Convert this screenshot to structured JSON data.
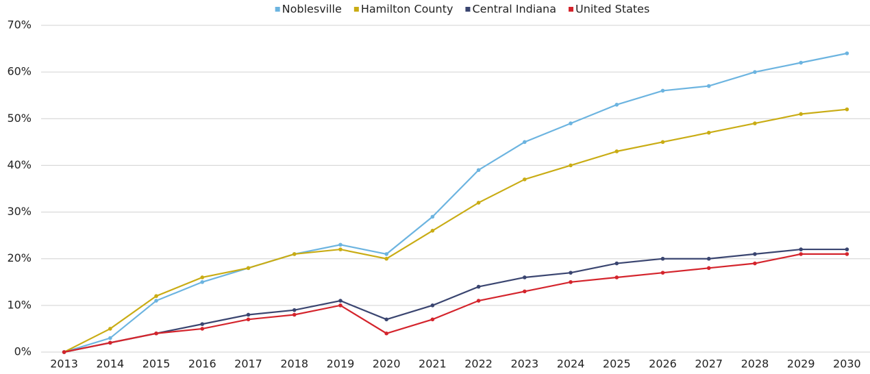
{
  "chart_data": {
    "type": "line",
    "categories": [
      "2013",
      "2014",
      "2015",
      "2016",
      "2017",
      "2018",
      "2019",
      "2020",
      "2021",
      "2022",
      "2023",
      "2024",
      "2025",
      "2026",
      "2027",
      "2028",
      "2029",
      "2030"
    ],
    "series": [
      {
        "name": "Noblesville",
        "color": "#6cb4e0",
        "values": [
          0,
          3,
          11,
          15,
          18,
          21,
          23,
          21,
          29,
          39,
          45,
          49,
          53,
          56,
          57,
          60,
          62,
          64
        ]
      },
      {
        "name": "Hamilton County",
        "color": "#c9ac14",
        "values": [
          0,
          5,
          12,
          16,
          18,
          21,
          22,
          20,
          26,
          32,
          37,
          40,
          43,
          45,
          47,
          49,
          51,
          52
        ]
      },
      {
        "name": "Central Indiana",
        "color": "#3a4570",
        "values": [
          0,
          2,
          4,
          6,
          8,
          9,
          11,
          7,
          10,
          14,
          16,
          17,
          19,
          20,
          20,
          21,
          22,
          22
        ]
      },
      {
        "name": "United States",
        "color": "#d4242c",
        "values": [
          0,
          2,
          4,
          5,
          7,
          8,
          10,
          4,
          7,
          11,
          13,
          15,
          16,
          17,
          18,
          19,
          21,
          21
        ]
      }
    ],
    "ylim": [
      0,
      70
    ],
    "yticks": [
      {
        "value": 0,
        "label": "0%"
      },
      {
        "value": 10,
        "label": "10%"
      },
      {
        "value": 20,
        "label": "20%"
      },
      {
        "value": 30,
        "label": "30%"
      },
      {
        "value": 40,
        "label": "40%"
      },
      {
        "value": 50,
        "label": "50%"
      },
      {
        "value": 60,
        "label": "60%"
      },
      {
        "value": 70,
        "label": "70%"
      }
    ],
    "grid": true,
    "legend": "top"
  }
}
